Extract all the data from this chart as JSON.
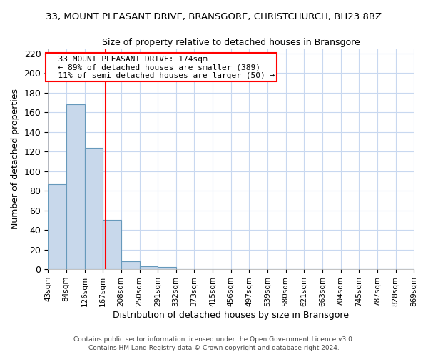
{
  "title1": "33, MOUNT PLEASANT DRIVE, BRANSGORE, CHRISTCHURCH, BH23 8BZ",
  "title2": "Size of property relative to detached houses in Bransgore",
  "xlabel": "Distribution of detached houses by size in Bransgore",
  "ylabel": "Number of detached properties",
  "bin_edges": [
    43,
    84,
    126,
    167,
    208,
    250,
    291,
    332,
    373,
    415,
    456,
    497,
    539,
    580,
    621,
    663,
    704,
    745,
    787,
    828,
    869
  ],
  "bar_heights": [
    87,
    168,
    124,
    50,
    8,
    3,
    2,
    0,
    0,
    0,
    0,
    0,
    0,
    0,
    0,
    0,
    0,
    0,
    0,
    0
  ],
  "bar_color": "#c8d8eb",
  "bar_edge_color": "#6699bb",
  "red_line_x": 174,
  "ylim": [
    0,
    225
  ],
  "yticks": [
    0,
    20,
    40,
    60,
    80,
    100,
    120,
    140,
    160,
    180,
    200,
    220
  ],
  "annotation_title": "33 MOUNT PLEASANT DRIVE: 174sqm",
  "annotation_line1": "← 89% of detached houses are smaller (389)",
  "annotation_line2": "11% of semi-detached houses are larger (50) →",
  "footer1": "Contains HM Land Registry data © Crown copyright and database right 2024.",
  "footer2": "Contains public sector information licensed under the Open Government Licence v3.0.",
  "background_color": "#ffffff",
  "grid_color": "#c8d8f0"
}
